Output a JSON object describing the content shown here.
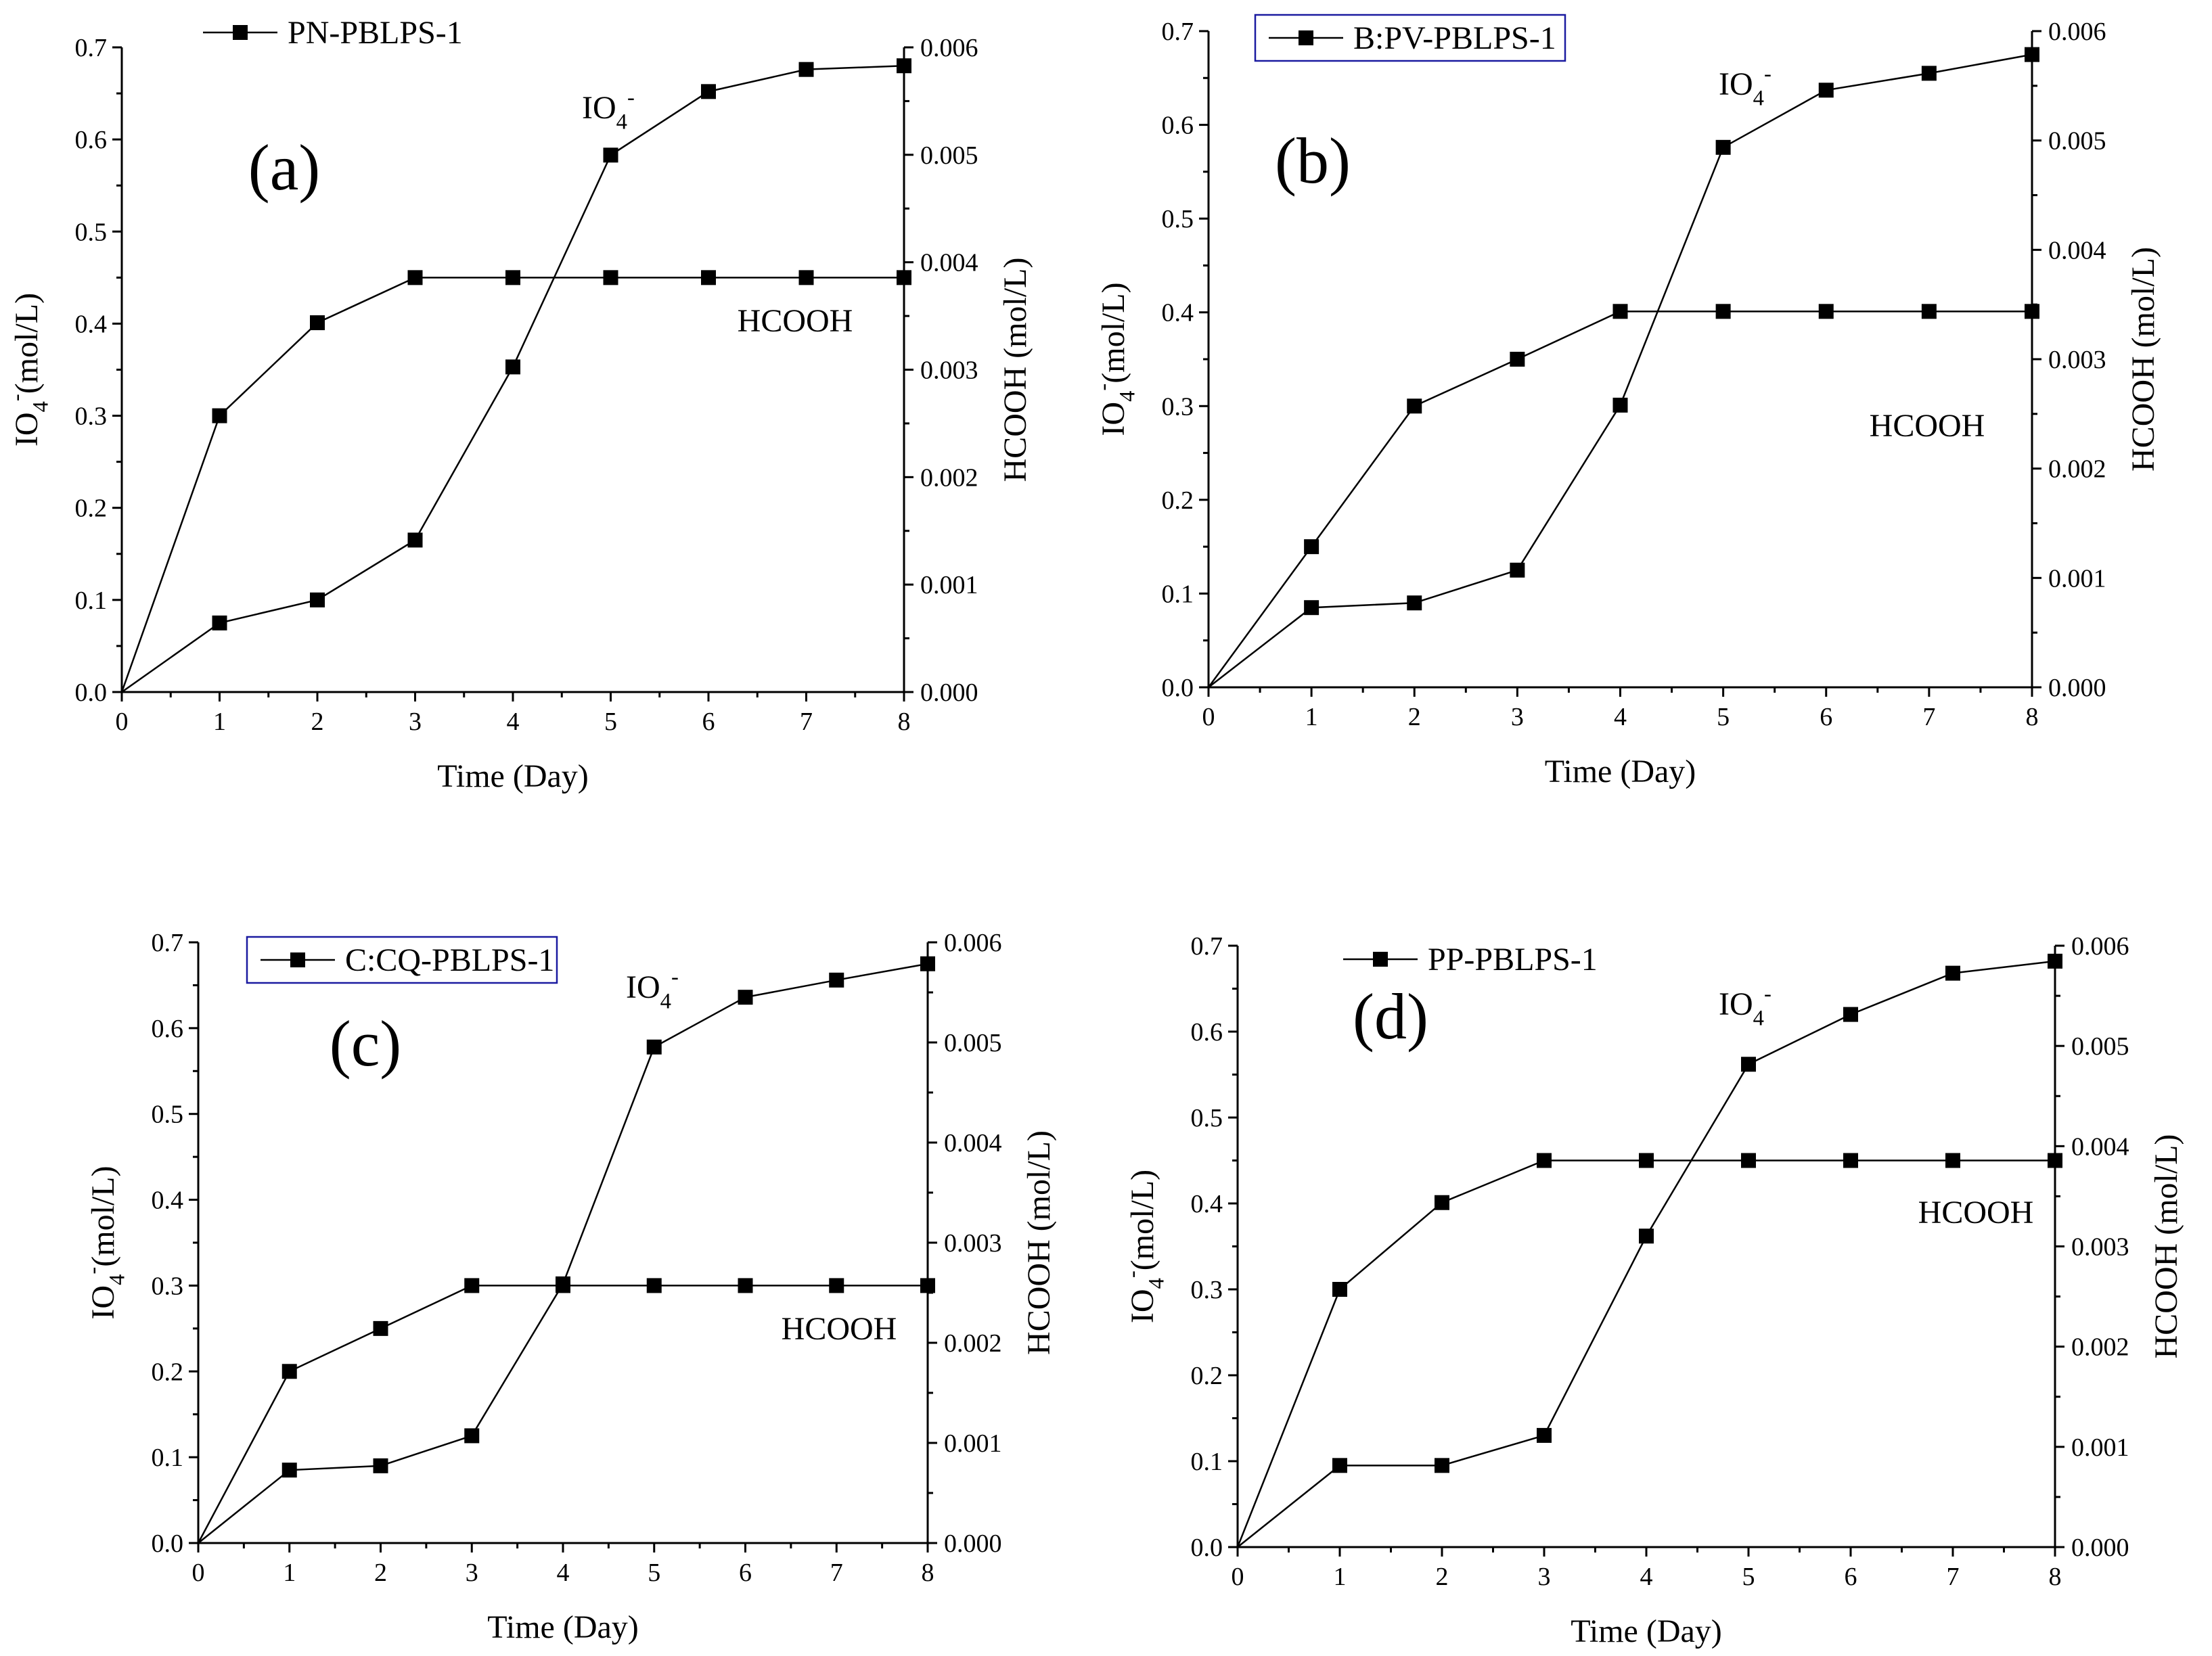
{
  "chart_data": [
    {
      "type": "line",
      "panel_label": "(a)",
      "legend": [
        "PN-PBLPS-1"
      ],
      "legend_boxed": false,
      "xlabel": "Time (Day)",
      "ylabel_left": "IO4-(mol/L)",
      "ylabel_right": "HCOOH (mol/L)",
      "xlim": [
        0,
        8
      ],
      "ylim_left": [
        0,
        0.7
      ],
      "ylim_right": [
        0,
        0.006
      ],
      "xticks": [
        "0",
        "1",
        "2",
        "3",
        "4",
        "5",
        "6",
        "7",
        "8"
      ],
      "yticks_left": [
        "0.0",
        "0.1",
        "0.2",
        "0.3",
        "0.4",
        "0.5",
        "0.6",
        "0.7"
      ],
      "yticks_right": [
        "0.000",
        "0.001",
        "0.002",
        "0.003",
        "0.004",
        "0.005",
        "0.006"
      ],
      "x": [
        0,
        1,
        2,
        3,
        4,
        5,
        6,
        7,
        8
      ],
      "series": [
        {
          "name": "IO4-",
          "axis": "left",
          "values": [
            0,
            0.075,
            0.1,
            0.165,
            0.353,
            0.583,
            0.652,
            0.676,
            0.68
          ]
        },
        {
          "name": "HCOOH",
          "axis": "left",
          "values": [
            0,
            0.3,
            0.401,
            0.45,
            0.45,
            0.45,
            0.45,
            0.45,
            0.45
          ]
        }
      ]
    },
    {
      "type": "line",
      "panel_label": "(b)",
      "legend": [
        "B:PV-PBLPS-1"
      ],
      "legend_boxed": true,
      "xlabel": "Time (Day)",
      "ylabel_left": "IO4-(mol/L)",
      "ylabel_right": "HCOOH (mol/L)",
      "xlim": [
        0,
        8
      ],
      "ylim_left": [
        0,
        0.7
      ],
      "ylim_right": [
        0,
        0.006
      ],
      "xticks": [
        "0",
        "1",
        "2",
        "3",
        "4",
        "5",
        "6",
        "7",
        "8"
      ],
      "yticks_left": [
        "0.0",
        "0.1",
        "0.2",
        "0.3",
        "0.4",
        "0.5",
        "0.6",
        "0.7"
      ],
      "yticks_right": [
        "0.000",
        "0.001",
        "0.002",
        "0.003",
        "0.004",
        "0.005",
        "0.006"
      ],
      "x": [
        0,
        1,
        2,
        3,
        4,
        5,
        6,
        7,
        8
      ],
      "series": [
        {
          "name": "IO4-",
          "axis": "left",
          "values": [
            0,
            0.085,
            0.09,
            0.125,
            0.301,
            0.576,
            0.637,
            0.655,
            0.675
          ]
        },
        {
          "name": "HCOOH",
          "axis": "left",
          "values": [
            0,
            0.15,
            0.3,
            0.35,
            0.401,
            0.401,
            0.401,
            0.401,
            0.401
          ]
        }
      ]
    },
    {
      "type": "line",
      "panel_label": "(c)",
      "legend": [
        "C:CQ-PBLPS-1"
      ],
      "legend_boxed": true,
      "xlabel": "Time (Day)",
      "ylabel_left": "IO4-(mol/L)",
      "ylabel_right": "HCOOH (mol/L)",
      "xlim": [
        0,
        8
      ],
      "ylim_left": [
        0,
        0.7
      ],
      "ylim_right": [
        0,
        0.006
      ],
      "xticks": [
        "0",
        "1",
        "2",
        "3",
        "4",
        "5",
        "6",
        "7",
        "8"
      ],
      "yticks_left": [
        "0.0",
        "0.1",
        "0.2",
        "0.3",
        "0.4",
        "0.5",
        "0.6",
        "0.7"
      ],
      "yticks_right": [
        "0.000",
        "0.001",
        "0.002",
        "0.003",
        "0.004",
        "0.005",
        "0.006"
      ],
      "x": [
        0,
        1,
        2,
        3,
        4,
        5,
        6,
        7,
        8
      ],
      "series": [
        {
          "name": "IO4-",
          "axis": "left",
          "values": [
            0,
            0.085,
            0.09,
            0.125,
            0.302,
            0.578,
            0.636,
            0.656,
            0.675
          ]
        },
        {
          "name": "HCOOH",
          "axis": "left",
          "values": [
            0,
            0.2,
            0.25,
            0.3,
            0.3,
            0.3,
            0.3,
            0.3,
            0.3
          ]
        }
      ]
    },
    {
      "type": "line",
      "panel_label": "(d)",
      "legend": [
        "PP-PBLPS-1"
      ],
      "legend_boxed": false,
      "xlabel": "Time (Day)",
      "ylabel_left": "IO4-(mol/L)",
      "ylabel_right": "HCOOH (mol/L)",
      "xlim": [
        0,
        8
      ],
      "ylim_left": [
        0,
        0.7
      ],
      "ylim_right": [
        0,
        0.006
      ],
      "xticks": [
        "0",
        "1",
        "2",
        "3",
        "4",
        "5",
        "6",
        "7",
        "8"
      ],
      "yticks_left": [
        "0.0",
        "0.1",
        "0.2",
        "0.3",
        "0.4",
        "0.5",
        "0.6",
        "0.7"
      ],
      "yticks_right": [
        "0.000",
        "0.001",
        "0.002",
        "0.003",
        "0.004",
        "0.005",
        "0.006"
      ],
      "x": [
        0,
        1,
        2,
        3,
        4,
        5,
        6,
        7,
        8
      ],
      "series": [
        {
          "name": "IO4-",
          "axis": "left",
          "values": [
            0,
            0.095,
            0.095,
            0.13,
            0.362,
            0.562,
            0.62,
            0.668,
            0.682
          ]
        },
        {
          "name": "HCOOH",
          "axis": "left",
          "values": [
            0,
            0.3,
            0.401,
            0.45,
            0.45,
            0.45,
            0.45,
            0.45,
            0.45
          ]
        }
      ]
    }
  ]
}
